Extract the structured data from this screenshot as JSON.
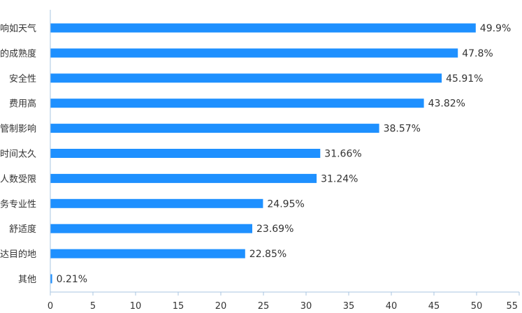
{
  "chart_data": {
    "type": "bar",
    "orientation": "horizontal",
    "categories": [
      "意外因素影响如天气",
      "设备显技术的成熟度",
      "安全性",
      "费用高",
      "空中交通管制影响",
      "预约等待时间太久",
      "出行人数受限",
      "服务专业性",
      "舒适度",
      "不及时到达目的地",
      "其他"
    ],
    "values": [
      49.9,
      47.8,
      45.91,
      43.82,
      38.57,
      31.66,
      31.24,
      24.95,
      23.69,
      22.85,
      0.21
    ],
    "value_labels": [
      "49.9%",
      "47.8%",
      "45.91%",
      "43.82%",
      "38.57%",
      "31.66%",
      "31.24%",
      "24.95%",
      "23.69%",
      "22.85%",
      "0.21%"
    ],
    "xticks": [
      "0",
      "5",
      "10",
      "15",
      "20",
      "25",
      "30",
      "35",
      "40",
      "45",
      "50",
      "55"
    ],
    "xlim": [
      0,
      55
    ],
    "grid": false,
    "colors": {
      "bar": "#1e90ff",
      "axis": "#a8c4e0",
      "text": "#333333"
    },
    "title": "",
    "xlabel": "",
    "ylabel": ""
  }
}
